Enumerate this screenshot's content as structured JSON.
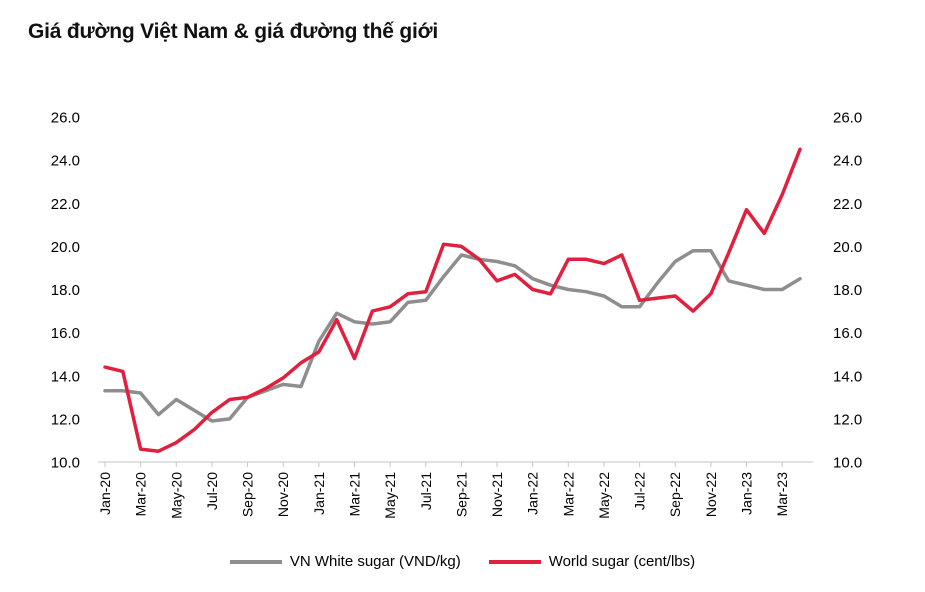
{
  "title": "Giá đường Việt Nam & giá đường thế giới",
  "chart_data": {
    "type": "line",
    "title": "Giá đường Việt Nam & giá đường thế giới",
    "x": [
      "Jan-20",
      "Feb-20",
      "Mar-20",
      "Apr-20",
      "May-20",
      "Jun-20",
      "Jul-20",
      "Aug-20",
      "Sep-20",
      "Oct-20",
      "Nov-20",
      "Dec-20",
      "Jan-21",
      "Feb-21",
      "Mar-21",
      "Apr-21",
      "May-21",
      "Jun-21",
      "Jul-21",
      "Aug-21",
      "Sep-21",
      "Oct-21",
      "Nov-21",
      "Dec-21",
      "Jan-22",
      "Feb-22",
      "Mar-22",
      "Apr-22",
      "May-22",
      "Jun-22",
      "Jul-22",
      "Aug-22",
      "Sep-22",
      "Oct-22",
      "Nov-22",
      "Dec-22",
      "Jan-23",
      "Feb-23",
      "Mar-23",
      "Apr-23"
    ],
    "x_tick_labels": [
      "Jan-20",
      "Mar-20",
      "May-20",
      "Jul-20",
      "Sep-20",
      "Nov-20",
      "Jan-21",
      "Mar-21",
      "May-21",
      "Jul-21",
      "Sep-21",
      "Nov-21",
      "Jan-22",
      "Mar-22",
      "May-22",
      "Jul-22",
      "Sep-22",
      "Nov-22",
      "Jan-23",
      "Mar-23"
    ],
    "series": [
      {
        "name": "VN White sugar (VND/kg)",
        "color": "#8E8E8E",
        "values": [
          13.3,
          13.3,
          13.2,
          12.2,
          12.9,
          12.4,
          11.9,
          12.0,
          13.0,
          13.3,
          13.6,
          13.5,
          15.6,
          16.9,
          16.5,
          16.4,
          16.5,
          17.4,
          17.5,
          18.6,
          19.6,
          19.4,
          19.3,
          19.1,
          18.5,
          18.2,
          18.0,
          17.9,
          17.7,
          17.2,
          17.2,
          18.3,
          19.3,
          19.8,
          19.8,
          18.4,
          18.2,
          18.0,
          18.0,
          18.5
        ]
      },
      {
        "name": "World sugar (cent/lbs)",
        "color": "#E0203E",
        "values": [
          14.4,
          14.2,
          10.6,
          10.5,
          10.9,
          11.5,
          12.3,
          12.9,
          13.0,
          13.4,
          13.9,
          14.6,
          15.1,
          16.6,
          14.8,
          17.0,
          17.2,
          17.8,
          17.9,
          20.1,
          20.0,
          19.4,
          18.4,
          18.7,
          18.0,
          17.8,
          19.4,
          19.4,
          19.2,
          19.6,
          17.5,
          17.6,
          17.7,
          17.0,
          17.8,
          19.7,
          21.7,
          20.6,
          22.4,
          24.5
        ]
      }
    ],
    "ylim": [
      10.0,
      26.0
    ],
    "y_tick_labels": [
      "10.0",
      "12.0",
      "14.0",
      "16.0",
      "18.0",
      "20.0",
      "22.0",
      "24.0",
      "26.0"
    ],
    "dual_axis": true,
    "grid": false,
    "legend_position": "bottom",
    "axis_line_color": "#D9D9D9",
    "tick_color": "#C6C6C6"
  },
  "legend": [
    {
      "label": "VN White sugar (VND/kg)"
    },
    {
      "label": "World sugar (cent/lbs)"
    }
  ]
}
